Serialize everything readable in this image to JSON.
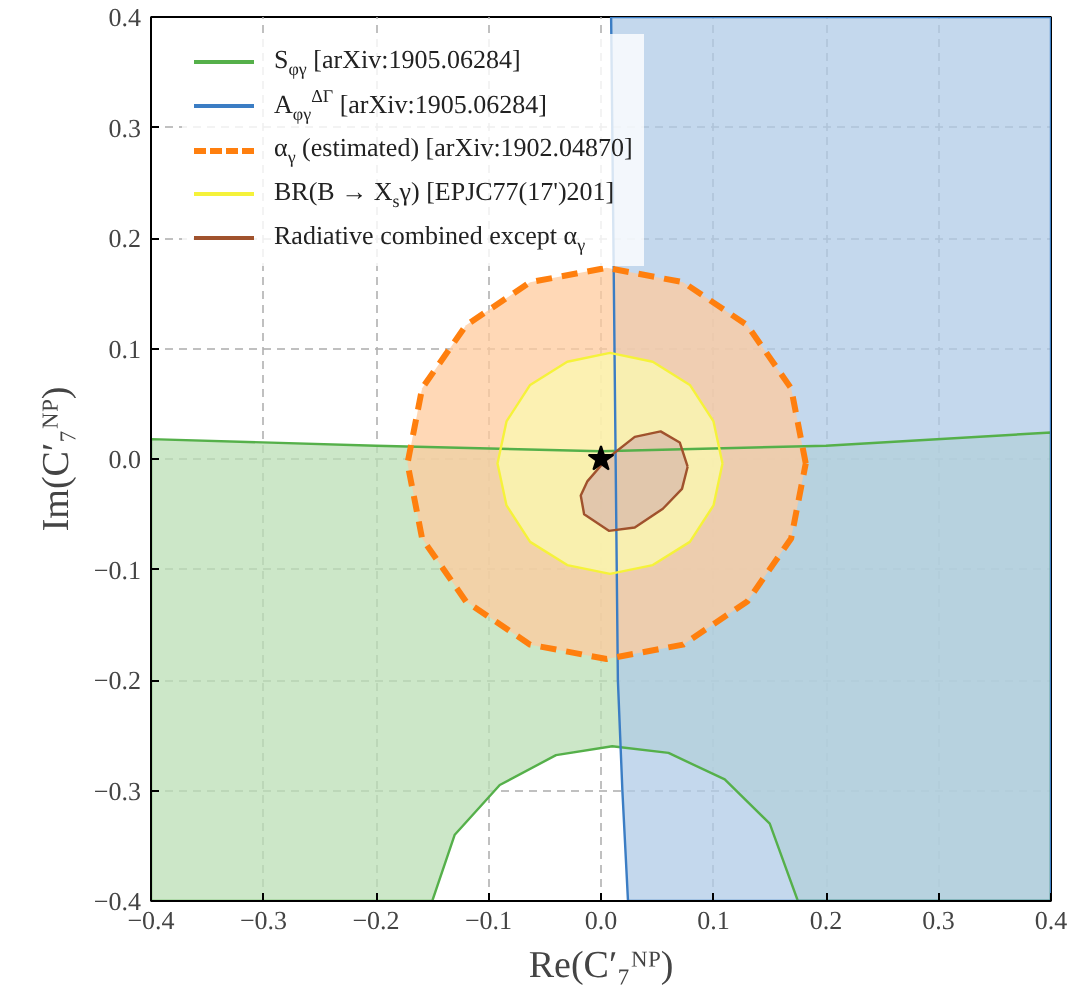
{
  "chart_data": {
    "type": "area",
    "xlabel": "Re(C′₇ᴺᴾ)",
    "ylabel": "Im(C′₇ᴺᴾ)",
    "xlim": [
      -0.4,
      0.4
    ],
    "ylim": [
      -0.4,
      0.4
    ],
    "xticks": [
      -0.4,
      -0.3,
      -0.2,
      -0.1,
      {
        "value": 0,
        "label": "0.0"
      },
      0.1,
      0.2,
      0.3,
      0.4
    ],
    "yticks": [
      -0.4,
      -0.3,
      -0.2,
      -0.1,
      {
        "value": 0,
        "label": "0.0"
      },
      0.1,
      0.2,
      0.3,
      0.4
    ],
    "grid": true,
    "legend": "top left",
    "series": [
      {
        "name": "S$_{φγ}$ [arXiv:1905.06284]",
        "color": "#55b04a",
        "x": [
          -0.4,
          -0.2,
          0.0,
          0.2,
          0.4,
          0.4,
          0.175,
          0.15,
          0.11,
          0.06,
          0.01,
          -0.04,
          -0.09,
          -0.13,
          -0.15,
          -0.4
        ],
        "values": [
          0.018,
          0.012,
          0.007,
          0.012,
          0.024,
          -0.4,
          -0.4,
          -0.33,
          -0.29,
          -0.266,
          -0.26,
          -0.268,
          -0.295,
          -0.34,
          -0.4,
          -0.4
        ]
      },
      {
        "name": "A$_{φγ}$$^{ΔΓ}$ [arXiv:1905.06284]",
        "color": "#3b7dc4",
        "x": [
          0.009,
          0.011,
          0.013,
          0.015,
          0.019,
          0.024,
          0.4,
          0.4
        ],
        "values": [
          0.4,
          0.2,
          0.0,
          -0.2,
          -0.3,
          -0.4,
          -0.4,
          0.4
        ]
      },
      {
        "name": "α$_{γ}$ (estimated) [arXiv:1902.04870]",
        "color": "#ff7f0e",
        "line_style": "dashed",
        "x": [
          0.182,
          0.169,
          0.13,
          0.073,
          0.005,
          -0.063,
          -0.12,
          -0.159,
          -0.172,
          -0.159,
          -0.12,
          -0.063,
          0.005,
          0.073,
          0.13,
          0.169
        ],
        "values": [
          -0.004,
          0.064,
          0.121,
          0.16,
          0.173,
          0.16,
          0.121,
          0.064,
          -0.004,
          -0.072,
          -0.129,
          -0.168,
          -0.181,
          -0.168,
          -0.129,
          -0.072
        ]
      },
      {
        "name": "BR(B → X$_{s}$γ) [EPJC77(17')201]",
        "color": "#f5f23a",
        "x": [
          0.108,
          0.1,
          0.079,
          0.046,
          0.008,
          -0.03,
          -0.063,
          -0.084,
          -0.092,
          -0.084,
          -0.063,
          -0.03,
          0.008,
          0.046,
          0.079,
          0.1
        ],
        "values": [
          -0.004,
          0.034,
          0.067,
          0.088,
          0.096,
          0.088,
          0.067,
          0.034,
          -0.004,
          -0.042,
          -0.075,
          -0.096,
          -0.104,
          -0.096,
          -0.075,
          -0.042
        ]
      },
      {
        "name": "Radiative combined except α$_{γ}$",
        "color": "#a0522d",
        "x": [
          0.077,
          0.07,
          0.053,
          0.03,
          0.005,
          -0.012,
          -0.018,
          -0.015,
          0.007,
          0.03,
          0.055,
          0.072
        ],
        "values": [
          -0.007,
          0.015,
          0.025,
          0.02,
          0.0,
          -0.02,
          -0.033,
          -0.05,
          -0.065,
          -0.062,
          -0.045,
          -0.027
        ]
      },
      {
        "type": "scatter",
        "marker": "star",
        "color": "#000000",
        "x": [
          0.0
        ],
        "values": [
          0.0
        ]
      }
    ]
  }
}
